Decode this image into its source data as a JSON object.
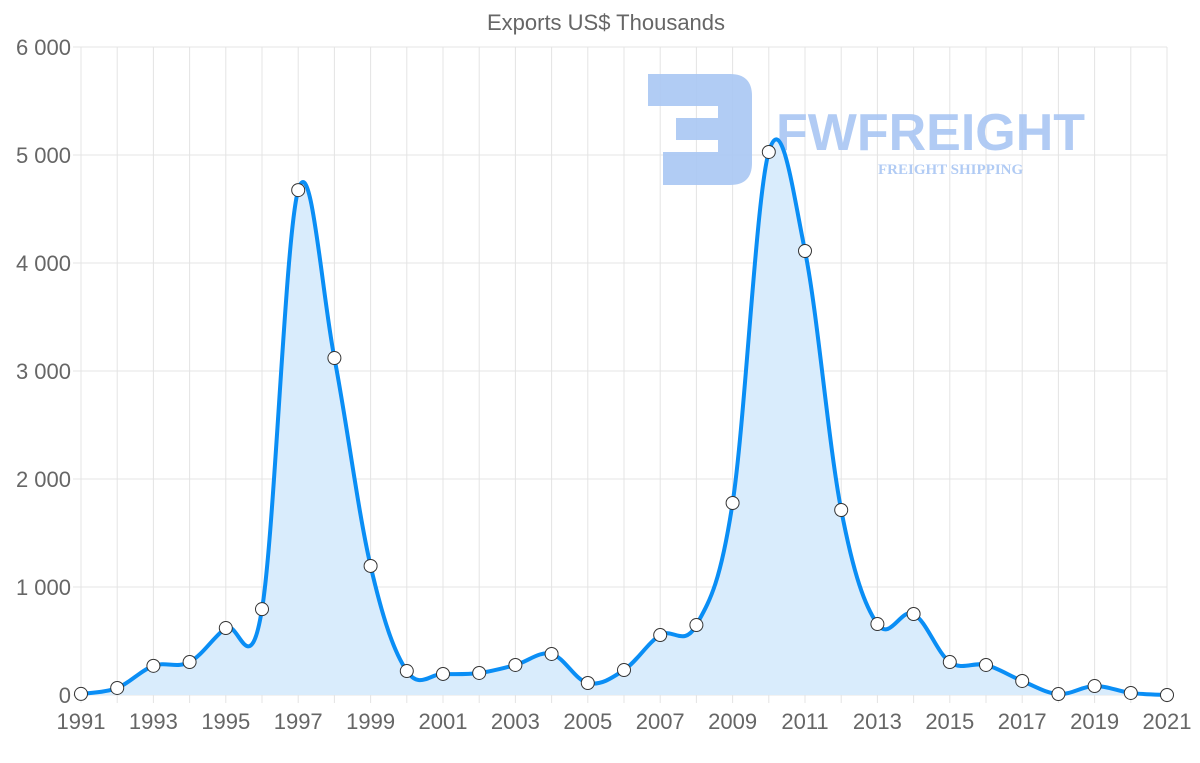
{
  "chart_data": {
    "type": "area",
    "title": "Exports US$ Thousands",
    "xlabel": "",
    "ylabel": "",
    "x": [
      1991,
      1992,
      1993,
      1994,
      1995,
      1996,
      1997,
      1998,
      1999,
      2000,
      2001,
      2002,
      2003,
      2004,
      2005,
      2006,
      2007,
      2008,
      2009,
      2010,
      2011,
      2012,
      2013,
      2014,
      2015,
      2016,
      2017,
      2018,
      2019,
      2020,
      2021
    ],
    "series": [
      {
        "name": "Exports US$ Thousands",
        "values": [
          10,
          65,
          270,
          305,
          620,
          795,
          4675,
          3120,
          1195,
          222,
          195,
          204,
          278,
          380,
          111,
          231,
          555,
          648,
          1778,
          5028,
          4111,
          1713,
          657,
          750,
          305,
          278,
          130,
          9,
          83,
          19,
          0
        ]
      }
    ],
    "xlim": [
      1991,
      2021
    ],
    "ylim": [
      0,
      6000
    ],
    "x_ticks": [
      "1991",
      "1993",
      "1995",
      "1997",
      "1999",
      "2001",
      "2003",
      "2005",
      "2007",
      "2009",
      "2011",
      "2013",
      "2015",
      "2017",
      "2019",
      "2021"
    ],
    "y_ticks": [
      "0",
      "1 000",
      "2 000",
      "3 000",
      "4 000",
      "5 000",
      "6 000"
    ],
    "grid": true,
    "legend": "none",
    "colors": {
      "line": "#0a8ef5",
      "fill": "#d9ecfc",
      "grid": "#e4e4e4",
      "logo": "#a9c6f3"
    }
  },
  "watermark": {
    "brand": "FWFREIGHT",
    "tagline": "FREIGHT SHIPPING"
  }
}
